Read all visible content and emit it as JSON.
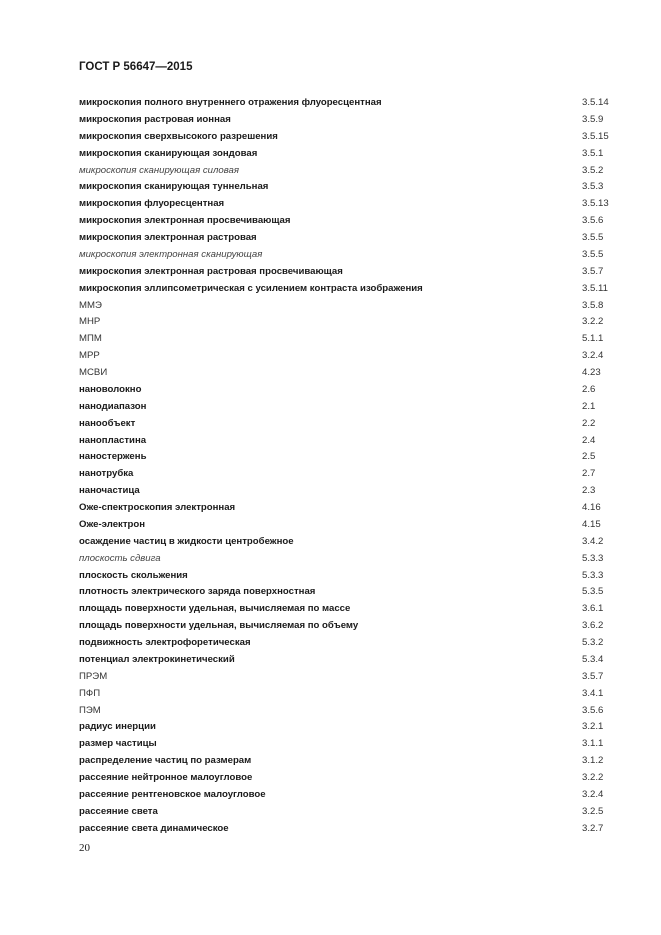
{
  "header": {
    "title": "ГОСТ Р 56647—2015"
  },
  "entries": [
    {
      "term": "микроскопия полного внутреннего отражения флуоресцентная",
      "ref": "3.5.14",
      "style": "bold"
    },
    {
      "term": "микроскопия растровая ионная",
      "ref": "3.5.9",
      "style": "bold"
    },
    {
      "term": "микроскопия сверхвысокого разрешения",
      "ref": "3.5.15",
      "style": "bold"
    },
    {
      "term": "микроскопия сканирующая зондовая",
      "ref": "3.5.1",
      "style": "bold"
    },
    {
      "term": "микроскопия сканирующая силовая",
      "ref": "3.5.2",
      "style": "italic"
    },
    {
      "term": "микроскопия сканирующая туннельная",
      "ref": "3.5.3",
      "style": "bold"
    },
    {
      "term": "микроскопия флуоресцентная",
      "ref": "3.5.13",
      "style": "bold"
    },
    {
      "term": "микроскопия электронная просвечивающая",
      "ref": "3.5.6",
      "style": "bold"
    },
    {
      "term": "микроскопия электронная растровая",
      "ref": "3.5.5",
      "style": "bold"
    },
    {
      "term": "микроскопия электронная сканирующая",
      "ref": "3.5.5",
      "style": "italic"
    },
    {
      "term": "микроскопия электронная растровая просвечивающая",
      "ref": "3.5.7",
      "style": "bold"
    },
    {
      "term": "микроскопия эллипсометрическая с усилением контраста изображения",
      "ref": "3.5.11",
      "style": "bold"
    },
    {
      "term": "ММЭ",
      "ref": "3.5.8",
      "style": "plain"
    },
    {
      "term": "МНР",
      "ref": "3.2.2",
      "style": "plain"
    },
    {
      "term": "МПМ",
      "ref": "5.1.1",
      "style": "plain"
    },
    {
      "term": "МРР",
      "ref": "3.2.4",
      "style": "plain"
    },
    {
      "term": "МСВИ",
      "ref": "4.23",
      "style": "plain"
    },
    {
      "term": "нановолокно",
      "ref": "2.6",
      "style": "bold"
    },
    {
      "term": "нанодиапазон",
      "ref": "2.1",
      "style": "bold"
    },
    {
      "term": "нанообъект",
      "ref": "2.2",
      "style": "bold"
    },
    {
      "term": "нанопластина",
      "ref": "2.4",
      "style": "bold"
    },
    {
      "term": "наностержень",
      "ref": "2.5",
      "style": "bold"
    },
    {
      "term": "нанотрубка",
      "ref": "2.7",
      "style": "bold"
    },
    {
      "term": "наночастица",
      "ref": "2.3",
      "style": "bold"
    },
    {
      "term": "Оже-спектроскопия электронная",
      "ref": "4.16",
      "style": "bold"
    },
    {
      "term": "Оже-электрон",
      "ref": "4.15",
      "style": "bold"
    },
    {
      "term": "осаждение частиц в жидкости центробежное",
      "ref": "3.4.2",
      "style": "bold"
    },
    {
      "term": "плоскость сдвига",
      "ref": "5.3.3",
      "style": "italic"
    },
    {
      "term": "плоскость скольжения",
      "ref": "5.3.3",
      "style": "bold"
    },
    {
      "term": "плотность электрического заряда поверхностная",
      "ref": "5.3.5",
      "style": "bold"
    },
    {
      "term": "площадь поверхности удельная, вычисляемая по массе",
      "ref": "3.6.1",
      "style": "bold"
    },
    {
      "term": "площадь поверхности удельная, вычисляемая по объему",
      "ref": "3.6.2",
      "style": "bold"
    },
    {
      "term": "подвижность электрофоретическая",
      "ref": "5.3.2",
      "style": "bold"
    },
    {
      "term": "потенциал электрокинетический",
      "ref": "5.3.4",
      "style": "bold"
    },
    {
      "term": "ПРЭМ",
      "ref": "3.5.7",
      "style": "plain"
    },
    {
      "term": "ПФП",
      "ref": "3.4.1",
      "style": "plain"
    },
    {
      "term": "ПЭМ",
      "ref": "3.5.6",
      "style": "plain"
    },
    {
      "term": "радиус инерции",
      "ref": "3.2.1",
      "style": "bold"
    },
    {
      "term": "размер частицы",
      "ref": "3.1.1",
      "style": "bold"
    },
    {
      "term": "распределение частиц по размерам",
      "ref": "3.1.2",
      "style": "bold"
    },
    {
      "term": "рассеяние нейтронное малоугловое",
      "ref": "3.2.2",
      "style": "bold"
    },
    {
      "term": "рассеяние рентгеновское малоугловое",
      "ref": "3.2.4",
      "style": "bold"
    },
    {
      "term": "рассеяние света",
      "ref": "3.2.5",
      "style": "bold"
    },
    {
      "term": "рассеяние света динамическое",
      "ref": "3.2.7",
      "style": "bold"
    }
  ],
  "footer": {
    "page_number": "20"
  }
}
